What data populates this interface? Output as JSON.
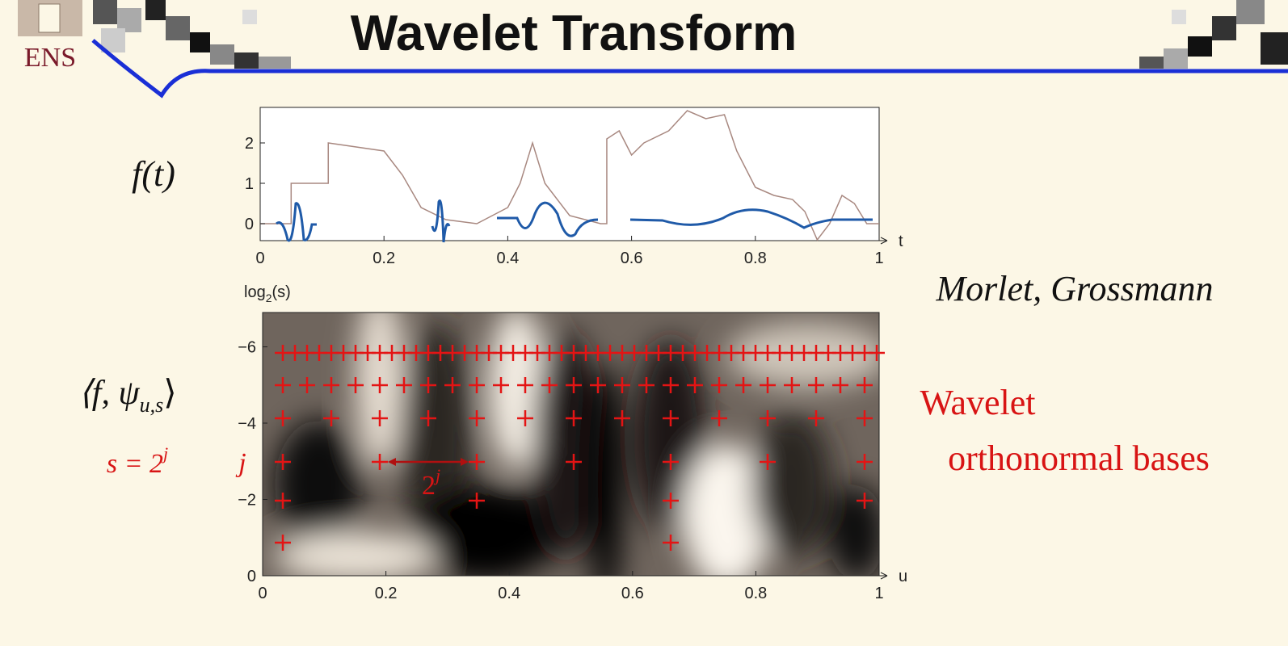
{
  "header": {
    "title": "Wavelet Transform",
    "logo": "ENS"
  },
  "labels": {
    "signal": "f(t)",
    "transform": [
      "⟨f, ψ",
      "u,s",
      "⟩"
    ],
    "scale": [
      "s = 2",
      "j"
    ],
    "j": "j",
    "spacing": [
      "2",
      "j"
    ],
    "credit": "Morlet, Grossmann",
    "bases": [
      "Wavelet",
      "orthonormal bases"
    ]
  },
  "signal_plot": {
    "xlim": [
      0,
      1
    ],
    "ylim": [
      -0.42,
      2.88
    ],
    "xticks": [
      0,
      0.2,
      0.4,
      0.6,
      0.8,
      1
    ],
    "yticks": [
      0,
      1,
      2
    ],
    "xlabel": "t",
    "x": [
      0,
      0.05,
      0.05,
      0.11,
      0.11,
      0.2,
      0.23,
      0.26,
      0.3,
      0.35,
      0.4,
      0.42,
      0.44,
      0.46,
      0.5,
      0.55,
      0.56,
      0.56,
      0.58,
      0.6,
      0.62,
      0.66,
      0.69,
      0.72,
      0.75,
      0.77,
      0.8,
      0.83,
      0.86,
      0.88,
      0.9,
      0.92,
      0.94,
      0.96,
      0.98,
      1
    ],
    "values": [
      0,
      0,
      1,
      1,
      2,
      1.8,
      1.2,
      0.4,
      0.1,
      0,
      0.4,
      1.0,
      2.0,
      1.0,
      0.2,
      0,
      0,
      2.1,
      2.3,
      1.7,
      2.0,
      2.3,
      2.8,
      2.6,
      2.7,
      1.8,
      0.9,
      0.7,
      0.6,
      0.3,
      -0.4,
      0,
      0.7,
      0.5,
      0,
      0
    ]
  },
  "transform_plot": {
    "xlim": [
      0,
      1
    ],
    "ylim": [
      0,
      6.9
    ],
    "xticks": [
      0,
      0.2,
      0.4,
      0.6,
      0.8,
      1
    ],
    "yticks": [
      0,
      {
        "value": 2,
        "label": "−2"
      },
      {
        "value": 4,
        "label": "−4"
      },
      {
        "value": 6,
        "label": "−6"
      }
    ],
    "xlabel": "u",
    "ylabel": [
      "log",
      "2",
      "(s)"
    ]
  }
}
